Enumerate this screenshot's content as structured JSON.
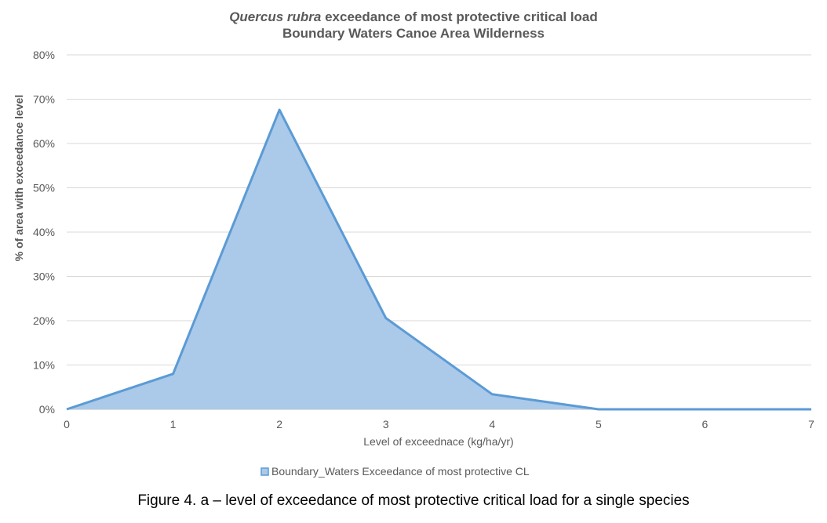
{
  "chart_data": {
    "type": "area",
    "title_italic": "Quercus rubra",
    "title_rest": " exceedance of most protective critical load",
    "subtitle": "Boundary Waters Canoe Area Wilderness",
    "xlabel": "Level of exceednace (kg/ha/yr)",
    "ylabel": "% of area with exceedance level",
    "x": [
      0,
      1,
      2,
      3,
      4,
      5,
      6,
      7
    ],
    "series": [
      {
        "name": "Boundary_Waters Exceedance of most protective CL",
        "values": [
          0,
          8,
          67.6,
          20.6,
          3.4,
          0,
          0,
          0
        ],
        "fill_color": "#abc9e9",
        "line_color": "#5b9bd5"
      }
    ],
    "xlim": [
      0,
      7
    ],
    "ylim": [
      0,
      80
    ],
    "x_ticks": [
      "0",
      "1",
      "2",
      "3",
      "4",
      "5",
      "6",
      "7"
    ],
    "y_ticks": [
      "0%",
      "10%",
      "20%",
      "30%",
      "40%",
      "50%",
      "60%",
      "70%",
      "80%"
    ],
    "grid": true,
    "legend_position": "bottom"
  },
  "caption": "Figure 4. a – level of exceedance of most protective critical load for a single species"
}
